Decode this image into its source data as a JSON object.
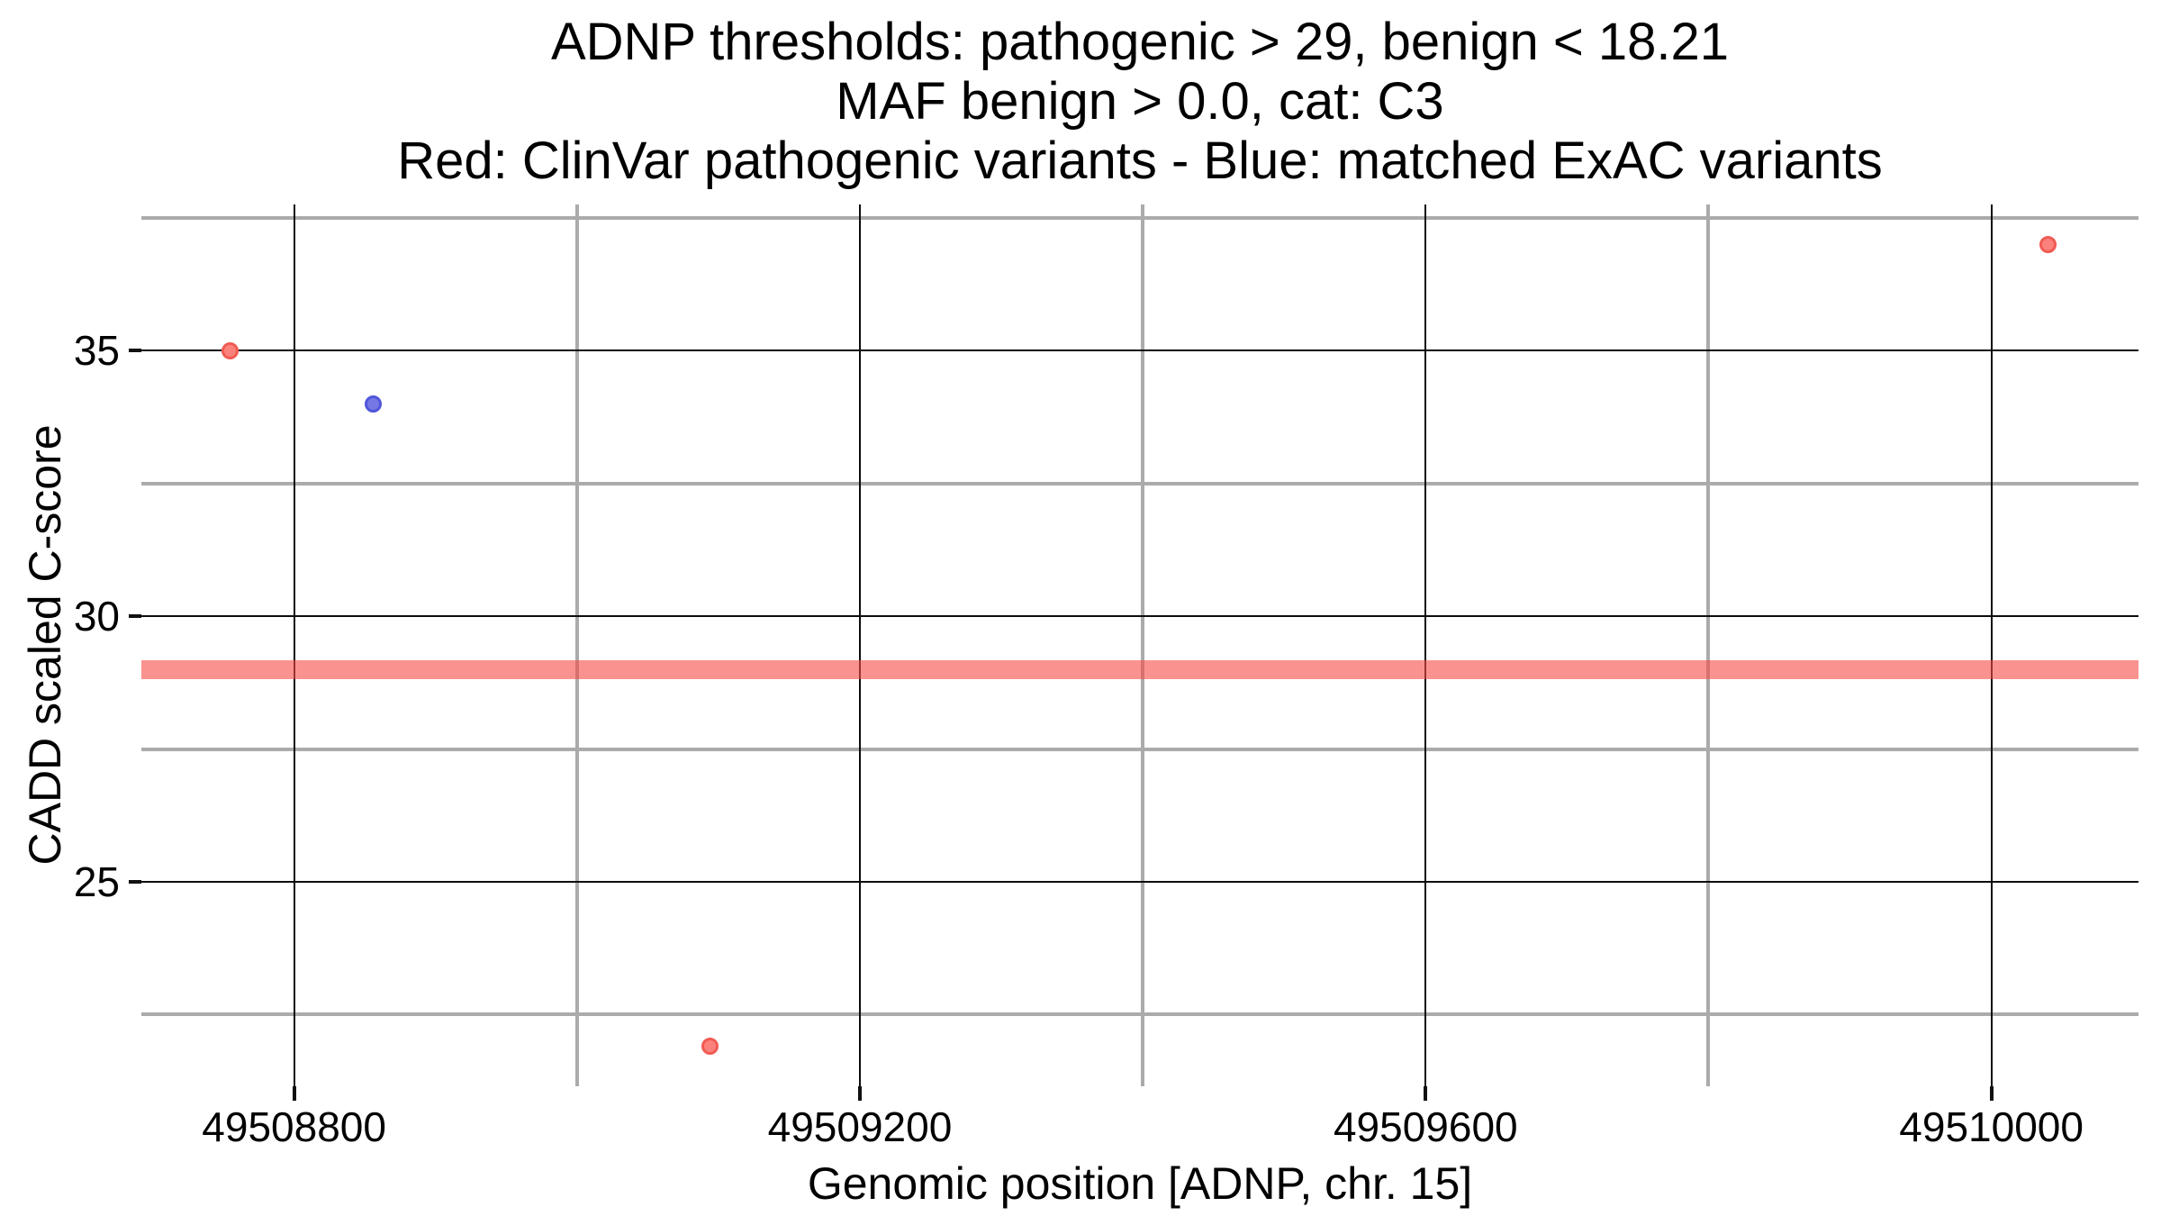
{
  "chart_data": {
    "type": "scatter",
    "title_lines": [
      "ADNP thresholds: pathogenic > 29, benign < 18.21",
      "MAF benign > 0.0, cat: C3",
      "Red: ClinVar pathogenic variants - Blue: matched ExAC variants"
    ],
    "xlabel": "Genomic position [ADNP, chr. 15]",
    "ylabel": "CADD scaled C-score",
    "xlim": [
      49508692,
      49510104
    ],
    "ylim": [
      21.15,
      37.75
    ],
    "x_ticks": [
      {
        "value": 49508800,
        "label": "49508800"
      },
      {
        "value": 49509200,
        "label": "49509200"
      },
      {
        "value": 49509600,
        "label": "49509600"
      },
      {
        "value": 49510000,
        "label": "49510000"
      }
    ],
    "y_ticks": [
      {
        "value": 25,
        "label": "25"
      },
      {
        "value": 30,
        "label": "30"
      },
      {
        "value": 35,
        "label": "35"
      }
    ],
    "x_minor_gridlines": [
      49509000,
      49509400,
      49509800
    ],
    "y_minor_gridlines": [
      22.5,
      27.5,
      32.5,
      37.5
    ],
    "grid": {
      "major_color": "#0d0d0d",
      "minor_color": "#ababab",
      "background": "#ffffff"
    },
    "threshold_line": {
      "y": 29,
      "meaning": "pathogenic threshold",
      "color": "rgba(247,75,70,0.6)",
      "thickness": 21
    },
    "series": [
      {
        "name": "ClinVar pathogenic variants",
        "color_fill": "#fb827c",
        "color_stroke": "#f15b53",
        "points": [
          {
            "x": 49508755,
            "y": 35.0
          },
          {
            "x": 49509094,
            "y": 21.9
          },
          {
            "x": 49510040,
            "y": 37.0
          }
        ]
      },
      {
        "name": "matched ExAC variants",
        "color_fill": "#7678e6",
        "color_stroke": "#5156d8",
        "points": [
          {
            "x": 49508856,
            "y": 34.0
          }
        ]
      }
    ]
  }
}
